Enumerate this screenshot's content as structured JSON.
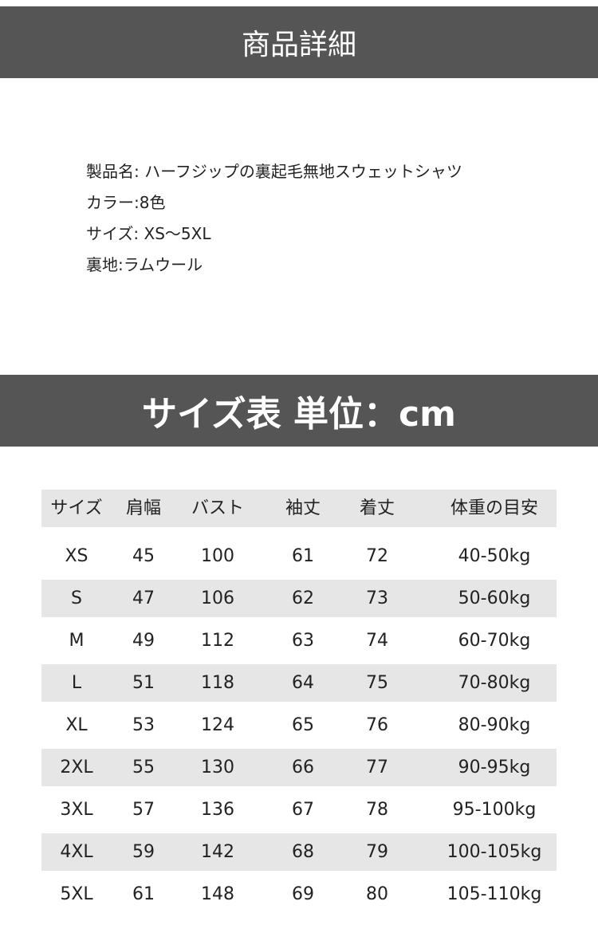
{
  "section1_title": "商品詳細",
  "details": [
    "製品名: ハーフジップの裏起毛無地スウェットシャツ",
    "カラー:8色",
    "サイズ: XS〜5XL",
    "裏地:ラムウール"
  ],
  "section2_title": "サイズ表 単位：cm",
  "table": {
    "headers": [
      "サイズ",
      "肩幅",
      "バスト",
      "袖丈",
      "着丈",
      "体重の目安"
    ],
    "rows": [
      [
        "XS",
        "45",
        "100",
        "61",
        "72",
        "40-50kg"
      ],
      [
        "S",
        "47",
        "106",
        "62",
        "73",
        "50-60kg"
      ],
      [
        "M",
        "49",
        "112",
        "63",
        "74",
        "60-70kg"
      ],
      [
        "L",
        "51",
        "118",
        "64",
        "75",
        "70-80kg"
      ],
      [
        "XL",
        "53",
        "124",
        "65",
        "76",
        "80-90kg"
      ],
      [
        "2XL",
        "55",
        "130",
        "66",
        "77",
        "90-95kg"
      ],
      [
        "3XL",
        "57",
        "136",
        "67",
        "78",
        "95-100kg"
      ],
      [
        "4XL",
        "59",
        "142",
        "68",
        "79",
        "100-105kg"
      ],
      [
        "5XL",
        "61",
        "148",
        "69",
        "80",
        "105-110kg"
      ]
    ]
  }
}
